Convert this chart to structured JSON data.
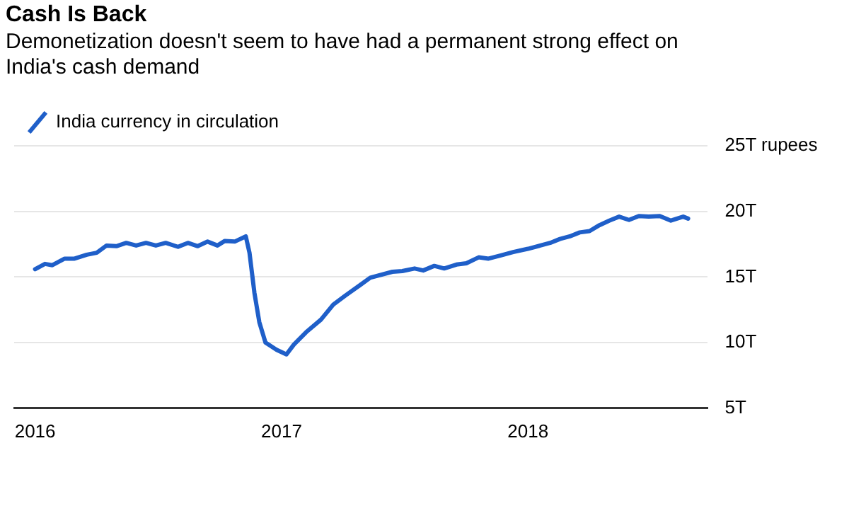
{
  "chart_data": {
    "type": "line",
    "title": "Cash Is Back",
    "subtitle": "Demonetization doesn't seem to have had a permanent strong effect on India's cash demand",
    "x": [
      2016.0,
      2016.04,
      2016.07,
      2016.12,
      2016.16,
      2016.21,
      2016.25,
      2016.29,
      2016.33,
      2016.37,
      2016.41,
      2016.45,
      2016.49,
      2016.53,
      2016.58,
      2016.62,
      2016.66,
      2016.7,
      2016.74,
      2016.77,
      2016.81,
      2016.855,
      2016.87,
      2016.89,
      2016.91,
      2016.935,
      2016.98,
      2017.02,
      2017.05,
      2017.1,
      2017.16,
      2017.21,
      2017.26,
      2017.32,
      2017.36,
      2017.45,
      2017.49,
      2017.54,
      2017.575,
      2017.62,
      2017.66,
      2017.71,
      2017.75,
      2017.8,
      2017.84,
      2017.89,
      2017.94,
      2018.0,
      2018.05,
      2018.09,
      2018.13,
      2018.17,
      2018.21,
      2018.25,
      2018.29,
      2018.33,
      2018.37,
      2018.41,
      2018.45,
      2018.49,
      2018.535,
      2018.58,
      2018.63,
      2018.65
    ],
    "series": [
      {
        "name": "India currency in circulation",
        "color": "#1f5fc9",
        "values": [
          15.6,
          16.0,
          15.9,
          16.4,
          16.4,
          16.7,
          16.85,
          17.4,
          17.35,
          17.6,
          17.4,
          17.6,
          17.4,
          17.6,
          17.3,
          17.6,
          17.35,
          17.7,
          17.4,
          17.75,
          17.7,
          18.1,
          16.85,
          13.8,
          11.55,
          10.0,
          9.45,
          9.1,
          9.85,
          10.8,
          11.75,
          12.9,
          13.6,
          14.4,
          14.95,
          15.4,
          15.45,
          15.65,
          15.5,
          15.85,
          15.65,
          15.95,
          16.05,
          16.5,
          16.4,
          16.65,
          16.9,
          17.15,
          17.4,
          17.6,
          17.9,
          18.1,
          18.4,
          18.5,
          18.95,
          19.3,
          19.6,
          19.35,
          19.65,
          19.6,
          19.65,
          19.3,
          19.6,
          19.45
        ]
      }
    ],
    "xlim": [
      2015.915,
      2018.73
    ],
    "xticks": [
      2016,
      2017,
      2018
    ],
    "ylim": [
      5,
      25
    ],
    "yticks": [
      {
        "value": 5,
        "label": "5T"
      },
      {
        "value": 10,
        "label": "10T"
      },
      {
        "value": 15,
        "label": "15T"
      },
      {
        "value": 20,
        "label": "20T"
      },
      {
        "value": 25,
        "label": "25T rupees"
      }
    ],
    "grid": "y",
    "legend": "top left",
    "marker": "none",
    "line_style": "solid"
  }
}
